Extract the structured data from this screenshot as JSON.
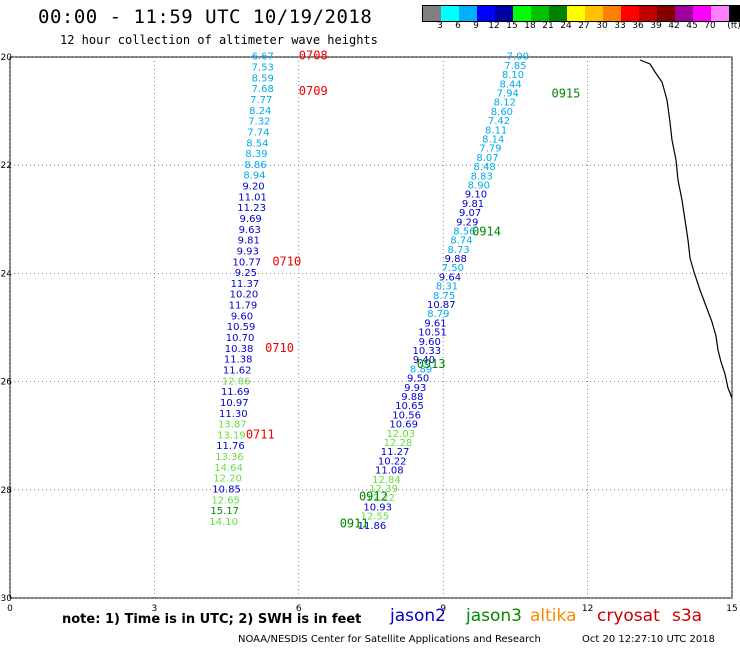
{
  "header": {
    "title": "00:00 - 11:59 UTC 10/19/2018",
    "subtitle": "12 hour collection of altimeter wave heights"
  },
  "colorbar": {
    "colors": [
      "#808080",
      "#00ffff",
      "#00b0ff",
      "#0000ff",
      "#0000a0",
      "#00ff00",
      "#00c000",
      "#008000",
      "#ffff00",
      "#ffc000",
      "#ff8000",
      "#ff0000",
      "#c00000",
      "#800000",
      "#a000a0",
      "#ff00ff",
      "#ff80ff",
      "#000000"
    ],
    "labels": [
      "3",
      "6",
      "9",
      "12",
      "15",
      "18",
      "21",
      "24",
      "27",
      "30",
      "33",
      "36",
      "39",
      "42",
      "45",
      "70",
      "(ft)"
    ]
  },
  "footer": {
    "note": "note: 1) Time is in UTC; 2) SWH is in feet",
    "satellites": [
      {
        "name": "jason2",
        "color": "#0000cc"
      },
      {
        "name": "jason3",
        "color": "#008800"
      },
      {
        "name": "altika",
        "color": "#ff8800"
      },
      {
        "name": "cryosat",
        "color": "#cc0000"
      },
      {
        "name": "s3a",
        "color": "#cc0000"
      }
    ],
    "credit": "NOAA/NESDIS Center for Satellite Applications and Research",
    "timestamp": "Oct 20 12:27:10 UTC 2018"
  },
  "chart_data": {
    "type": "scatter",
    "xlim": [
      0,
      15
    ],
    "ylim": [
      -30,
      -20
    ],
    "xticks": [
      "0",
      "3",
      "6",
      "9",
      "12",
      "15"
    ],
    "yticks": [
      "-20",
      "-22",
      "-24",
      "-26",
      "-28",
      "-30"
    ],
    "grid": "dotted",
    "tracks": [
      {
        "points": [
          {
            "x": 5.25,
            "y": -20.05,
            "v": "6.67",
            "c": "#00aaee"
          },
          {
            "x": 5.25,
            "y": -20.25,
            "v": "7.53",
            "c": "#00aaee"
          },
          {
            "x": 5.25,
            "y": -20.45,
            "v": "8.59",
            "c": "#00aaee"
          },
          {
            "x": 5.25,
            "y": -20.65,
            "v": "7.68",
            "c": "#00aaee"
          },
          {
            "x": 5.22,
            "y": -20.85,
            "v": "7.77",
            "c": "#00aaee"
          },
          {
            "x": 5.2,
            "y": -21.05,
            "v": "8.24",
            "c": "#00aaee"
          },
          {
            "x": 5.18,
            "y": -21.25,
            "v": "7.32",
            "c": "#00aaee"
          },
          {
            "x": 5.16,
            "y": -21.45,
            "v": "7.74",
            "c": "#00aaee"
          },
          {
            "x": 5.14,
            "y": -21.65,
            "v": "8.54",
            "c": "#00aaee"
          },
          {
            "x": 5.12,
            "y": -21.85,
            "v": "8.39",
            "c": "#00aaee"
          },
          {
            "x": 5.1,
            "y": -22.05,
            "v": "8.86",
            "c": "#00aaee"
          },
          {
            "x": 5.08,
            "y": -22.25,
            "v": "8.94",
            "c": "#00aaee"
          },
          {
            "x": 5.06,
            "y": -22.45,
            "v": "9.20",
            "c": "#0000cc"
          },
          {
            "x": 5.04,
            "y": -22.65,
            "v": "11.01",
            "c": "#0000cc"
          },
          {
            "x": 5.02,
            "y": -22.85,
            "v": "11.23",
            "c": "#0000cc"
          },
          {
            "x": 5.0,
            "y": -23.05,
            "v": "9.69",
            "c": "#0000cc"
          },
          {
            "x": 4.98,
            "y": -23.25,
            "v": "9.63",
            "c": "#0000cc"
          },
          {
            "x": 4.96,
            "y": -23.45,
            "v": "9.81",
            "c": "#0000cc"
          },
          {
            "x": 4.94,
            "y": -23.65,
            "v": "9.93",
            "c": "#0000cc"
          },
          {
            "x": 4.92,
            "y": -23.85,
            "v": "10.77",
            "c": "#0000cc"
          },
          {
            "x": 4.9,
            "y": -24.05,
            "v": "9.25",
            "c": "#0000cc"
          },
          {
            "x": 4.88,
            "y": -24.25,
            "v": "11.37",
            "c": "#0000cc"
          },
          {
            "x": 4.86,
            "y": -24.45,
            "v": "10.20",
            "c": "#0000cc"
          },
          {
            "x": 4.84,
            "y": -24.65,
            "v": "11.79",
            "c": "#0000cc"
          },
          {
            "x": 4.82,
            "y": -24.85,
            "v": "9.60",
            "c": "#0000cc"
          },
          {
            "x": 4.8,
            "y": -25.05,
            "v": "10.59",
            "c": "#0000cc"
          },
          {
            "x": 4.78,
            "y": -25.25,
            "v": "10.70",
            "c": "#0000cc"
          },
          {
            "x": 4.76,
            "y": -25.45,
            "v": "10.38",
            "c": "#0000cc"
          },
          {
            "x": 4.74,
            "y": -25.65,
            "v": "11.38",
            "c": "#0000cc"
          },
          {
            "x": 4.72,
            "y": -25.85,
            "v": "11.62",
            "c": "#0000cc"
          },
          {
            "x": 4.7,
            "y": -26.05,
            "v": "12.86",
            "c": "#66dd44"
          },
          {
            "x": 4.68,
            "y": -26.25,
            "v": "11.69",
            "c": "#0000cc"
          },
          {
            "x": 4.66,
            "y": -26.45,
            "v": "10.97",
            "c": "#0000cc"
          },
          {
            "x": 4.64,
            "y": -26.65,
            "v": "11.30",
            "c": "#0000cc"
          },
          {
            "x": 4.62,
            "y": -26.85,
            "v": "13.87",
            "c": "#66dd44"
          },
          {
            "x": 4.6,
            "y": -27.05,
            "v": "13.19",
            "c": "#66dd44"
          },
          {
            "x": 4.58,
            "y": -27.25,
            "v": "11.76",
            "c": "#0000cc"
          },
          {
            "x": 4.56,
            "y": -27.45,
            "v": "13.36",
            "c": "#66dd44"
          },
          {
            "x": 4.54,
            "y": -27.65,
            "v": "14.64",
            "c": "#66dd44"
          },
          {
            "x": 4.52,
            "y": -27.85,
            "v": "12.20",
            "c": "#66dd44"
          },
          {
            "x": 4.5,
            "y": -28.05,
            "v": "10.85",
            "c": "#0000cc"
          },
          {
            "x": 4.48,
            "y": -28.25,
            "v": "12.65",
            "c": "#66dd44"
          },
          {
            "x": 4.46,
            "y": -28.45,
            "v": "15.17",
            "c": "#008800"
          },
          {
            "x": 4.44,
            "y": -28.65,
            "v": "14.10",
            "c": "#66dd44"
          }
        ],
        "times": [
          {
            "x": 6.3,
            "y": -20.05,
            "t": "0708",
            "c": "#ee0000"
          },
          {
            "x": 6.3,
            "y": -20.7,
            "t": "0709",
            "c": "#ee0000"
          },
          {
            "x": 5.75,
            "y": -23.85,
            "t": "0710",
            "c": "#ee0000"
          },
          {
            "x": 5.6,
            "y": -25.45,
            "t": "0710",
            "c": "#ee0000"
          },
          {
            "x": 5.2,
            "y": -27.05,
            "t": "0711",
            "c": "#ee0000"
          }
        ]
      },
      {
        "points": [
          {
            "x": 10.55,
            "y": -20.05,
            "v": "7.00",
            "c": "#00aaee"
          },
          {
            "x": 10.5,
            "y": -20.22,
            "v": "7.85",
            "c": "#00aaee"
          },
          {
            "x": 10.45,
            "y": -20.39,
            "v": "8.10",
            "c": "#00aaee"
          },
          {
            "x": 10.4,
            "y": -20.56,
            "v": "8.44",
            "c": "#00aaee"
          },
          {
            "x": 10.34,
            "y": -20.73,
            "v": "7.94",
            "c": "#00aaee"
          },
          {
            "x": 10.28,
            "y": -20.9,
            "v": "8.12",
            "c": "#00aaee"
          },
          {
            "x": 10.22,
            "y": -21.07,
            "v": "8.60",
            "c": "#00aaee"
          },
          {
            "x": 10.16,
            "y": -21.24,
            "v": "7.42",
            "c": "#00aaee"
          },
          {
            "x": 10.1,
            "y": -21.41,
            "v": "8.11",
            "c": "#00aaee"
          },
          {
            "x": 10.04,
            "y": -21.58,
            "v": "8.14",
            "c": "#00aaee"
          },
          {
            "x": 9.98,
            "y": -21.75,
            "v": "7.79",
            "c": "#00aaee"
          },
          {
            "x": 9.92,
            "y": -21.92,
            "v": "8.07",
            "c": "#00aaee"
          },
          {
            "x": 9.86,
            "y": -22.09,
            "v": "8.48",
            "c": "#00aaee"
          },
          {
            "x": 9.8,
            "y": -22.26,
            "v": "8.83",
            "c": "#00aaee"
          },
          {
            "x": 9.74,
            "y": -22.43,
            "v": "8.90",
            "c": "#00aaee"
          },
          {
            "x": 9.68,
            "y": -22.6,
            "v": "9.10",
            "c": "#0000cc"
          },
          {
            "x": 9.62,
            "y": -22.77,
            "v": "9.81",
            "c": "#0000cc"
          },
          {
            "x": 9.56,
            "y": -22.94,
            "v": "9.07",
            "c": "#0000cc"
          },
          {
            "x": 9.5,
            "y": -23.11,
            "v": "9.29",
            "c": "#0000cc"
          },
          {
            "x": 9.44,
            "y": -23.28,
            "v": "8.56",
            "c": "#00aaee"
          },
          {
            "x": 9.38,
            "y": -23.45,
            "v": "8.74",
            "c": "#00aaee"
          },
          {
            "x": 9.32,
            "y": -23.62,
            "v": "8.73",
            "c": "#00aaee"
          },
          {
            "x": 9.26,
            "y": -23.79,
            "v": "9.88",
            "c": "#0000cc"
          },
          {
            "x": 9.2,
            "y": -23.96,
            "v": "7.50",
            "c": "#00aaee"
          },
          {
            "x": 9.14,
            "y": -24.13,
            "v": "9.64",
            "c": "#0000cc"
          },
          {
            "x": 9.08,
            "y": -24.3,
            "v": "8.31",
            "c": "#00aaee"
          },
          {
            "x": 9.02,
            "y": -24.47,
            "v": "8.75",
            "c": "#00aaee"
          },
          {
            "x": 8.96,
            "y": -24.64,
            "v": "10.87",
            "c": "#0000cc"
          },
          {
            "x": 8.9,
            "y": -24.81,
            "v": "8.79",
            "c": "#00aaee"
          },
          {
            "x": 8.84,
            "y": -24.98,
            "v": "9.61",
            "c": "#0000cc"
          },
          {
            "x": 8.78,
            "y": -25.15,
            "v": "10.51",
            "c": "#0000cc"
          },
          {
            "x": 8.72,
            "y": -25.32,
            "v": "9.60",
            "c": "#0000cc"
          },
          {
            "x": 8.66,
            "y": -25.49,
            "v": "10.33",
            "c": "#0000cc"
          },
          {
            "x": 8.6,
            "y": -25.66,
            "v": "9.40",
            "c": "#0000cc"
          },
          {
            "x": 8.54,
            "y": -25.83,
            "v": "8.89",
            "c": "#00aaee"
          },
          {
            "x": 8.48,
            "y": -26.0,
            "v": "9.50",
            "c": "#0000cc"
          },
          {
            "x": 8.42,
            "y": -26.17,
            "v": "9.93",
            "c": "#0000cc"
          },
          {
            "x": 8.36,
            "y": -26.34,
            "v": "9.88",
            "c": "#0000cc"
          },
          {
            "x": 8.3,
            "y": -26.51,
            "v": "10.65",
            "c": "#0000cc"
          },
          {
            "x": 8.24,
            "y": -26.68,
            "v": "10.56",
            "c": "#0000cc"
          },
          {
            "x": 8.18,
            "y": -26.85,
            "v": "10.69",
            "c": "#0000cc"
          },
          {
            "x": 8.12,
            "y": -27.02,
            "v": "12.03",
            "c": "#66dd44"
          },
          {
            "x": 8.06,
            "y": -27.19,
            "v": "12.28",
            "c": "#66dd44"
          },
          {
            "x": 8.0,
            "y": -27.36,
            "v": "11.27",
            "c": "#0000cc"
          },
          {
            "x": 7.94,
            "y": -27.53,
            "v": "10.22",
            "c": "#0000cc"
          },
          {
            "x": 7.88,
            "y": -27.7,
            "v": "11.08",
            "c": "#0000cc"
          },
          {
            "x": 7.82,
            "y": -27.87,
            "v": "12.84",
            "c": "#66dd44"
          },
          {
            "x": 7.76,
            "y": -28.04,
            "v": "12.39",
            "c": "#66dd44"
          },
          {
            "x": 7.7,
            "y": -28.21,
            "v": "12.22",
            "c": "#66dd44"
          },
          {
            "x": 7.64,
            "y": -28.38,
            "v": "10.93",
            "c": "#0000cc"
          },
          {
            "x": 7.58,
            "y": -28.55,
            "v": "12.55",
            "c": "#66dd44"
          },
          {
            "x": 7.52,
            "y": -28.72,
            "v": "11.86",
            "c": "#0000cc"
          }
        ],
        "times": [
          {
            "x": 11.55,
            "y": -20.75,
            "t": "0915",
            "c": "#008800"
          },
          {
            "x": 9.9,
            "y": -23.3,
            "t": "0914",
            "c": "#008800"
          },
          {
            "x": 8.75,
            "y": -25.75,
            "t": "0913",
            "c": "#008800"
          },
          {
            "x": 7.55,
            "y": -28.2,
            "t": "0912",
            "c": "#008800"
          },
          {
            "x": 7.15,
            "y": -28.7,
            "t": "0911",
            "c": "#008800"
          }
        ]
      }
    ]
  }
}
